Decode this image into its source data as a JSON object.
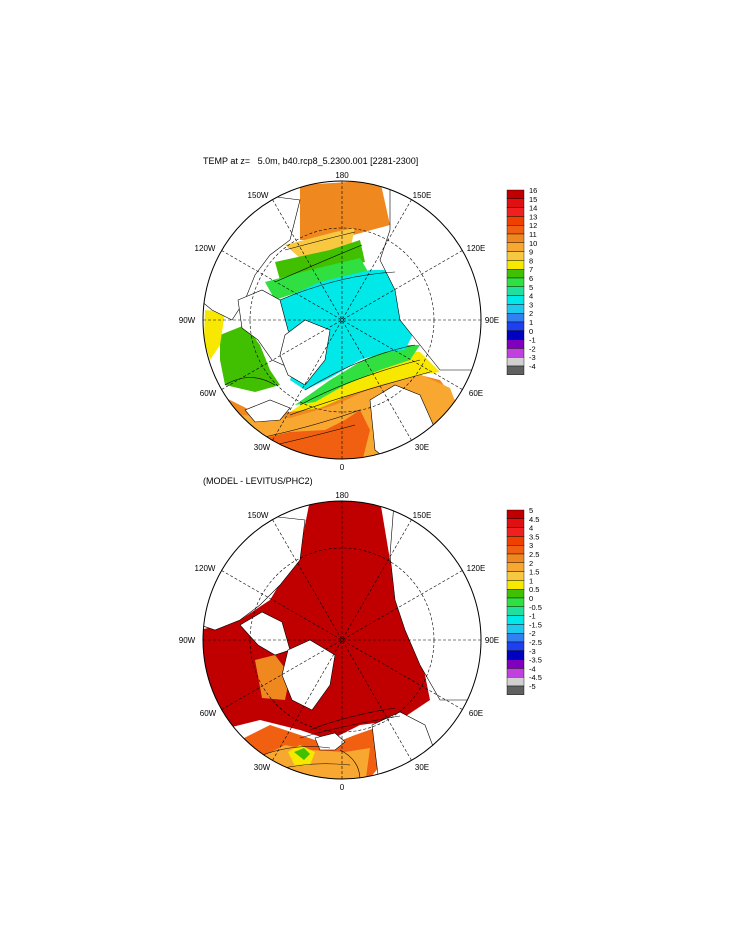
{
  "panels": [
    {
      "title": "TEMP at z=   5.0m, b40.rcp8_5.2300.001 [2281-2300]",
      "lon_labels": {
        "top": "180",
        "upper_left": "150W",
        "upper_right": "150E",
        "left_upper": "120W",
        "right_upper": "120E",
        "left": "90W",
        "right": "90E",
        "left_lower": "60W",
        "right_lower": "60E",
        "bottom_left": "30W",
        "bottom_right": "30E",
        "bottom": "0"
      },
      "colorbar": {
        "labels": [
          "16",
          "15",
          "14",
          "13",
          "12",
          "11",
          "10",
          "9",
          "8",
          "7",
          "6",
          "5",
          "4",
          "3",
          "2",
          "1",
          "0",
          "-1",
          "-2",
          "-3",
          "-4"
        ],
        "colors": [
          "#c00000",
          "#e01010",
          "#f02020",
          "#f04000",
          "#f06010",
          "#f08820",
          "#f8a830",
          "#f8c840",
          "#f8e800",
          "#40c000",
          "#30e040",
          "#20e0a0",
          "#00e8e8",
          "#20c8f0",
          "#3080f0",
          "#2040f0",
          "#0000c0",
          "#8000c0",
          "#c040e0",
          "#d0d0d0",
          "#606060"
        ]
      }
    },
    {
      "title": "(MODEL - LEVITUS/PHC2)",
      "lon_labels": {
        "top": "180",
        "upper_left": "150W",
        "upper_right": "150E",
        "left_upper": "120W",
        "right_upper": "120E",
        "left": "90W",
        "right": "90E",
        "left_lower": "60W",
        "right_lower": "60E",
        "bottom_left": "30W",
        "bottom_right": "30E",
        "bottom": "0"
      },
      "colorbar": {
        "labels": [
          "5",
          "4.5",
          "4",
          "3.5",
          "3",
          "2.5",
          "2",
          "1.5",
          "1",
          "0.5",
          "0",
          "-0.5",
          "-1",
          "-1.5",
          "-2",
          "-2.5",
          "-3",
          "-3.5",
          "-4",
          "-4.5",
          "-5"
        ],
        "colors": [
          "#c00000",
          "#e01010",
          "#f02020",
          "#f04000",
          "#f06010",
          "#f08820",
          "#f8a830",
          "#f8c840",
          "#f8e800",
          "#40c000",
          "#30e040",
          "#20e0a0",
          "#00e8e8",
          "#20c8f0",
          "#3080f0",
          "#2040f0",
          "#0000c0",
          "#8000c0",
          "#c040e0",
          "#d0d0d0",
          "#606060"
        ]
      }
    }
  ]
}
